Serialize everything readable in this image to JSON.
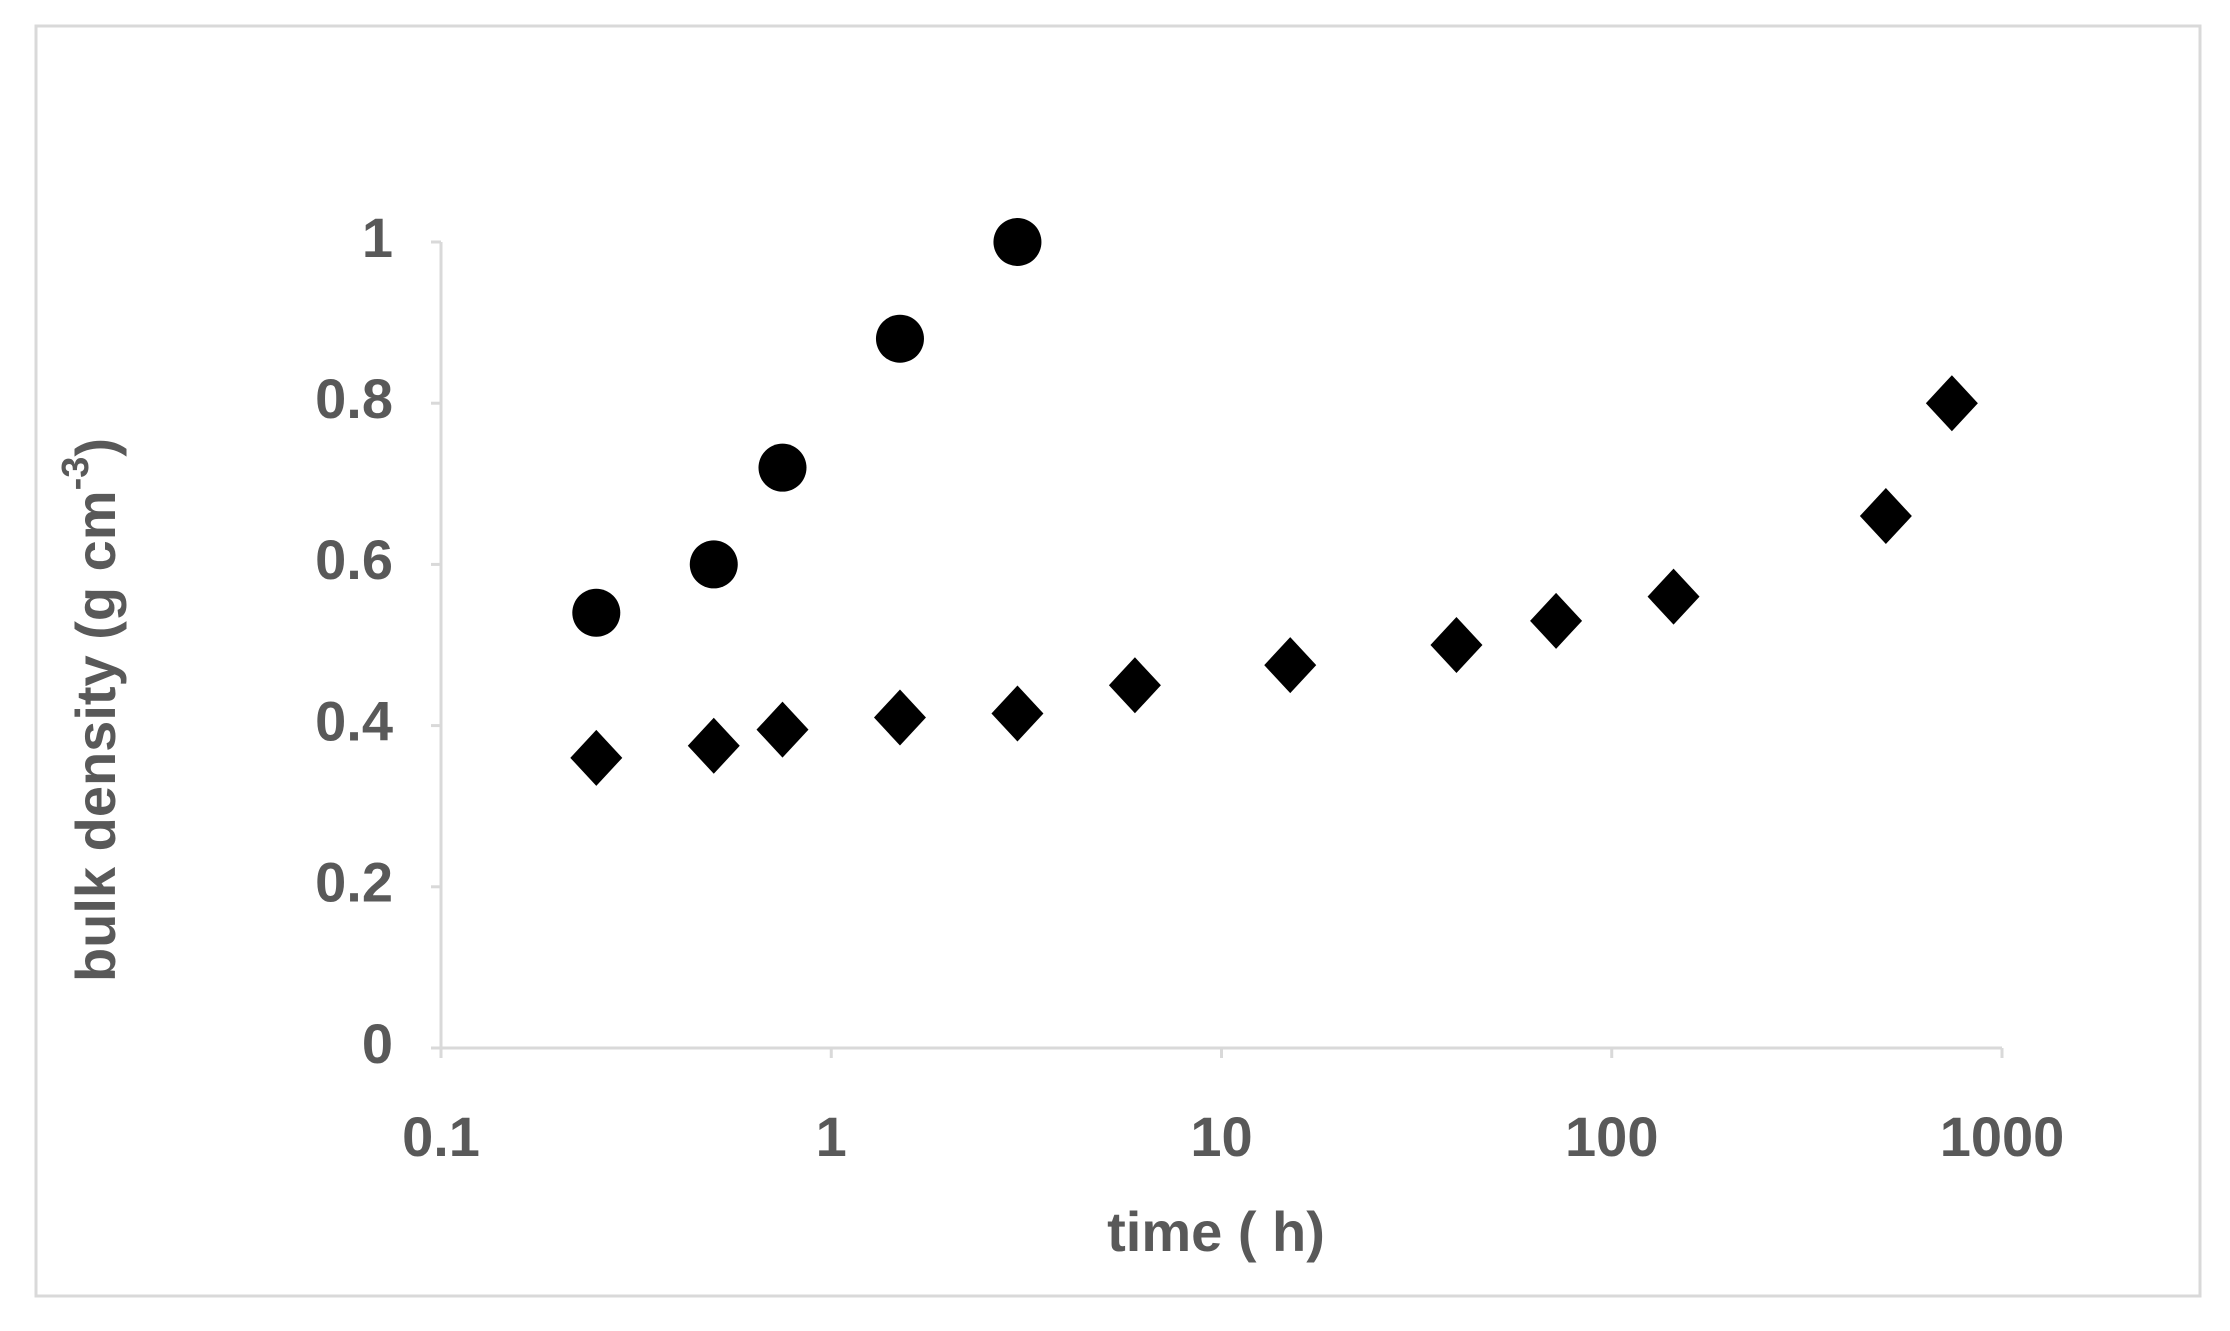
{
  "chart_data": {
    "type": "scatter",
    "x_label": "time ( h)",
    "y_label": {
      "text": "bulk density (g cm",
      "superscript": "-3",
      "close": ")"
    },
    "x_scale": "log",
    "xlim": [
      0.1,
      1000
    ],
    "xticks": [
      0.1,
      1,
      10,
      100,
      1000
    ],
    "ylim": [
      0,
      1
    ],
    "yticks": [
      0,
      0.2,
      0.4,
      0.6,
      0.8,
      1
    ],
    "grid": false,
    "series": [
      {
        "marker": "circle",
        "color": "#000000",
        "x": [
          0.25,
          0.5,
          0.75,
          1.5,
          3
        ],
        "values": [
          0.54,
          0.6,
          0.72,
          0.88,
          1.0
        ]
      },
      {
        "marker": "diamond",
        "color": "#000000",
        "x": [
          0.25,
          0.5,
          0.75,
          1.5,
          3,
          6,
          15,
          40,
          72,
          144,
          504,
          744
        ],
        "values": [
          0.36,
          0.375,
          0.395,
          0.41,
          0.415,
          0.45,
          0.475,
          0.5,
          0.53,
          0.56,
          0.66,
          0.8
        ]
      }
    ]
  }
}
